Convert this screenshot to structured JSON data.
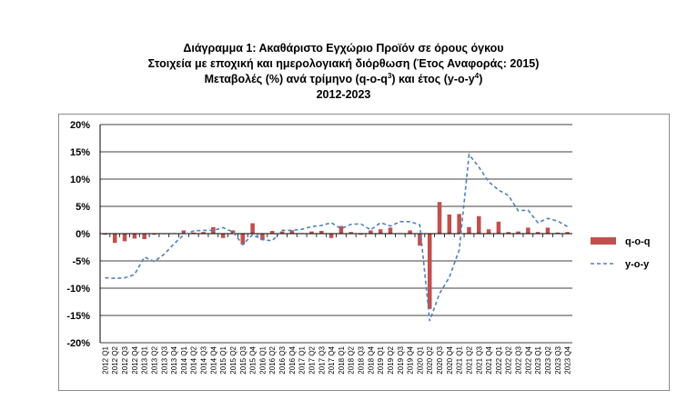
{
  "titles": {
    "line1": "Διάγραμμα 1: Ακαθάριστο Εγχώριο Προϊόν σε όρους όγκου",
    "line2": "Στοιχεία με εποχική και ημερολογιακή διόρθωση (Έτος Αναφοράς: 2015)",
    "line3_pre": "Μεταβολές (%) ανά τρίμηνο (q-o-q",
    "line3_sup1": "3",
    "line3_mid": ") και έτος (y-o-y",
    "line3_sup2": "4",
    "line3_post": ")",
    "line4": "2012-2023"
  },
  "colors": {
    "bar": "#c0504d",
    "line": "#4f81bd",
    "grid": "#000000",
    "frame": "#8c8c8c"
  },
  "chart_data": {
    "type": "bar",
    "title": "Διάγραμμα 1: Ακαθάριστο Εγχώριο Προϊόν σε όρους όγκου",
    "ylim": [
      -20,
      20
    ],
    "yticks": [
      -20,
      -15,
      -10,
      -5,
      0,
      5,
      10,
      15,
      20
    ],
    "ytick_labels": [
      "-20%",
      "-15%",
      "-10%",
      "-5%",
      "0%",
      "5%",
      "10%",
      "15%",
      "20%"
    ],
    "grid": true,
    "legend_position": "right",
    "categories": [
      "2012 Q1",
      "2012 Q2",
      "2012 Q3",
      "2012 Q4",
      "2013 Q1",
      "2013 Q2",
      "2013 Q3",
      "2013 Q4",
      "2014 Q1",
      "2014 Q2",
      "2014 Q3",
      "2014 Q4",
      "2015 Q1",
      "2015 Q2",
      "2015 Q3",
      "2015 Q4",
      "2016 Q1",
      "2016 Q2",
      "2016 Q3",
      "2016 Q4",
      "2017 Q1",
      "2017 Q2",
      "2017 Q3",
      "2017 Q4",
      "2018 Q1",
      "2018 Q2",
      "2018 Q3",
      "2018 Q4",
      "2019 Q1",
      "2019 Q2",
      "2019 Q3",
      "2019 Q4",
      "2020 Q1",
      "2020 Q2",
      "2020 Q3",
      "2020 Q4",
      "2021 Q1",
      "2021 Q2",
      "2021 Q3",
      "2021 Q4",
      "2022 Q1",
      "2022 Q2",
      "2022 Q3",
      "2022 Q4",
      "2023 Q1",
      "2023 Q2",
      "2023 Q3",
      "2023 Q4"
    ],
    "series": [
      {
        "name": "q-o-q",
        "type": "bar",
        "values": [
          -0.2,
          -1.7,
          -1.4,
          -0.9,
          -1.0,
          -0.2,
          -0.1,
          0.1,
          0.6,
          0.2,
          0.3,
          1.2,
          -0.8,
          0.6,
          -2.0,
          1.9,
          -1.2,
          0.5,
          0.4,
          0.6,
          0.1,
          0.4,
          0.5,
          -0.8,
          1.4,
          0.3,
          -0.2,
          0.6,
          0.8,
          1.1,
          0.1,
          0.6,
          -2.2,
          -13.8,
          5.8,
          3.5,
          3.6,
          1.2,
          3.2,
          0.8,
          2.2,
          0.3,
          0.4,
          1.1,
          0.3,
          1.1,
          0.2,
          0.3
        ]
      },
      {
        "name": "y-o-y",
        "type": "line",
        "style": "dashed",
        "values": [
          -8.1,
          -8.2,
          -8.1,
          -7.5,
          -4.3,
          -5.1,
          -3.8,
          -1.9,
          -0.2,
          0.5,
          0.6,
          0.6,
          1.1,
          0.3,
          -2.0,
          -0.2,
          -1.1,
          -1.3,
          0.6,
          0.6,
          0.8,
          1.3,
          1.5,
          2.0,
          0.9,
          1.7,
          1.8,
          0.7,
          2.0,
          1.4,
          2.2,
          2.2,
          1.6,
          -16.0,
          -11.0,
          -8.0,
          -3.0,
          14.5,
          12.2,
          9.5,
          8.0,
          7.0,
          4.2,
          4.3,
          2.0,
          2.8,
          2.3,
          1.3
        ]
      }
    ]
  }
}
